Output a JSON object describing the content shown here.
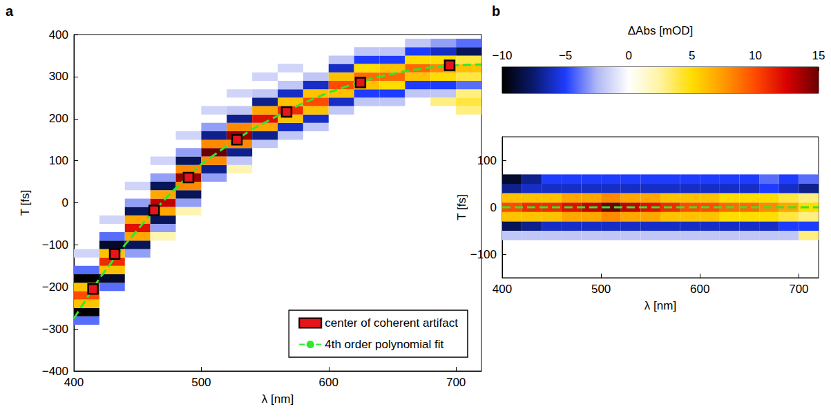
{
  "chart_data": [
    {
      "panel": "a",
      "type": "heatmap",
      "x_label": "λ [nm]",
      "y_label": "T [fs]",
      "xlim": [
        400,
        720
      ],
      "xticks": [
        400,
        500,
        600,
        700
      ],
      "ylim": [
        -400,
        400
      ],
      "yticks": [
        {
          "value": -400,
          "label": "−400"
        },
        {
          "value": -300,
          "label": "−300"
        },
        {
          "value": -200,
          "label": "−200"
        },
        {
          "value": -100,
          "label": "−100"
        },
        0,
        100,
        200,
        300,
        400
      ],
      "legend": "lower right",
      "cells": [
        [
          410,
          -280,
          -4
        ],
        [
          410,
          -260,
          -10
        ],
        [
          410,
          -240,
          6
        ],
        [
          410,
          -220,
          10
        ],
        [
          410,
          -200,
          6
        ],
        [
          410,
          -180,
          -10
        ],
        [
          410,
          -160,
          -4
        ],
        [
          410,
          -120,
          -1.5
        ],
        [
          430,
          -200,
          -4
        ],
        [
          430,
          -180,
          -9
        ],
        [
          430,
          -160,
          6
        ],
        [
          430,
          -140,
          11
        ],
        [
          430,
          -120,
          6
        ],
        [
          430,
          -100,
          -9
        ],
        [
          430,
          -80,
          -4
        ],
        [
          430,
          -40,
          -1.5
        ],
        [
          450,
          -120,
          -3
        ],
        [
          450,
          -100,
          -8
        ],
        [
          450,
          -80,
          7
        ],
        [
          450,
          -60,
          12
        ],
        [
          450,
          -40,
          7
        ],
        [
          450,
          -20,
          -8
        ],
        [
          450,
          0,
          -3
        ],
        [
          450,
          40,
          -1.5
        ],
        [
          470,
          -80,
          2
        ],
        [
          470,
          -60,
          -3
        ],
        [
          470,
          -40,
          -8
        ],
        [
          470,
          -20,
          7
        ],
        [
          470,
          0,
          13
        ],
        [
          470,
          20,
          7
        ],
        [
          470,
          40,
          -8
        ],
        [
          470,
          60,
          -3
        ],
        [
          470,
          100,
          -1.5
        ],
        [
          490,
          -20,
          2
        ],
        [
          490,
          0,
          -3
        ],
        [
          490,
          20,
          -8
        ],
        [
          490,
          40,
          8
        ],
        [
          490,
          60,
          14
        ],
        [
          490,
          80,
          8
        ],
        [
          490,
          100,
          -8
        ],
        [
          490,
          120,
          -3
        ],
        [
          490,
          160,
          -1.5
        ],
        [
          510,
          60,
          -3
        ],
        [
          510,
          80,
          -7
        ],
        [
          510,
          100,
          8
        ],
        [
          510,
          120,
          15
        ],
        [
          510,
          140,
          8
        ],
        [
          510,
          160,
          -7
        ],
        [
          510,
          180,
          -3
        ],
        [
          510,
          220,
          -1.5
        ],
        [
          530,
          80,
          2
        ],
        [
          530,
          100,
          -2
        ],
        [
          530,
          120,
          -7
        ],
        [
          530,
          140,
          8
        ],
        [
          530,
          160,
          14
        ],
        [
          530,
          180,
          8
        ],
        [
          530,
          200,
          -7
        ],
        [
          530,
          220,
          -2
        ],
        [
          530,
          260,
          -1.5
        ],
        [
          550,
          140,
          -2
        ],
        [
          550,
          160,
          -7
        ],
        [
          550,
          180,
          7
        ],
        [
          550,
          200,
          12
        ],
        [
          550,
          220,
          7
        ],
        [
          550,
          240,
          -7
        ],
        [
          550,
          260,
          -2
        ],
        [
          550,
          300,
          -1.5
        ],
        [
          570,
          160,
          -2
        ],
        [
          570,
          180,
          -6
        ],
        [
          570,
          200,
          6
        ],
        [
          570,
          220,
          11
        ],
        [
          570,
          240,
          6
        ],
        [
          570,
          260,
          -6
        ],
        [
          570,
          280,
          -2
        ],
        [
          570,
          320,
          -1.5
        ],
        [
          590,
          180,
          -2
        ],
        [
          590,
          200,
          -6
        ],
        [
          590,
          220,
          6
        ],
        [
          590,
          240,
          10
        ],
        [
          590,
          260,
          6
        ],
        [
          590,
          280,
          -6
        ],
        [
          590,
          300,
          -2
        ],
        [
          610,
          220,
          -2
        ],
        [
          610,
          240,
          -6
        ],
        [
          610,
          260,
          6
        ],
        [
          610,
          280,
          10
        ],
        [
          610,
          300,
          6
        ],
        [
          610,
          320,
          -6
        ],
        [
          610,
          340,
          -2
        ],
        [
          630,
          240,
          -2
        ],
        [
          630,
          260,
          -5
        ],
        [
          630,
          280,
          6
        ],
        [
          630,
          300,
          9
        ],
        [
          630,
          320,
          5
        ],
        [
          630,
          340,
          -5
        ],
        [
          630,
          360,
          -2
        ],
        [
          650,
          240,
          -2
        ],
        [
          650,
          260,
          -5
        ],
        [
          650,
          280,
          5
        ],
        [
          650,
          300,
          9
        ],
        [
          650,
          320,
          6
        ],
        [
          650,
          340,
          -5
        ],
        [
          650,
          360,
          -2
        ],
        [
          670,
          260,
          -2
        ],
        [
          670,
          280,
          -5
        ],
        [
          670,
          300,
          6
        ],
        [
          670,
          320,
          9
        ],
        [
          670,
          340,
          5
        ],
        [
          670,
          360,
          -5
        ],
        [
          670,
          380,
          -2
        ],
        [
          690,
          240,
          3
        ],
        [
          690,
          260,
          -2
        ],
        [
          690,
          280,
          -5
        ],
        [
          690,
          300,
          5
        ],
        [
          690,
          320,
          8
        ],
        [
          690,
          340,
          5
        ],
        [
          690,
          360,
          -6
        ],
        [
          690,
          380,
          -3
        ],
        [
          710,
          220,
          3
        ],
        [
          710,
          240,
          4
        ],
        [
          710,
          260,
          3
        ],
        [
          710,
          280,
          -4
        ],
        [
          710,
          300,
          4
        ],
        [
          710,
          320,
          6
        ],
        [
          710,
          340,
          4
        ],
        [
          710,
          360,
          -8
        ],
        [
          710,
          380,
          -4
        ]
      ],
      "series": [
        {
          "name": "center of coherent artifact",
          "type": "scatter",
          "marker": "square",
          "color": "#e8141c",
          "x": [
            415,
            432,
            463,
            490,
            528,
            567,
            625,
            695
          ],
          "values": [
            -205,
            -122,
            -18,
            60,
            150,
            216,
            286,
            327
          ]
        },
        {
          "name": "4th order polynomial fit",
          "type": "line",
          "line_style": "dashed",
          "color": "#2ee82e",
          "x": [
            400,
            420,
            440,
            460,
            480,
            500,
            520,
            540,
            560,
            580,
            600,
            620,
            640,
            660,
            680,
            700,
            720
          ],
          "values": [
            -275,
            -180,
            -100,
            -28,
            35,
            92,
            135,
            175,
            207,
            237,
            262,
            283,
            300,
            313,
            322,
            327,
            329
          ]
        }
      ]
    },
    {
      "panel": "b",
      "type": "heatmap",
      "x_label": "λ [nm]",
      "y_label": "T [fs]",
      "xlim": [
        400,
        720
      ],
      "xticks": [
        400,
        500,
        600,
        700
      ],
      "ylim": [
        -150,
        150
      ],
      "yticks": [
        {
          "value": -100,
          "label": "−100"
        },
        0,
        100
      ],
      "color_bar": {
        "label": "ΔAbs [mOD]",
        "range": [
          -10,
          15
        ],
        "ticks": [
          {
            "value": -10,
            "label": "−10"
          },
          {
            "value": -5,
            "label": "−5"
          },
          0,
          5,
          10,
          15
        ]
      },
      "cells": [
        [
          410,
          -60,
          -2
        ],
        [
          410,
          -40,
          -8
        ],
        [
          410,
          -20,
          6
        ],
        [
          410,
          0,
          10
        ],
        [
          410,
          20,
          6
        ],
        [
          410,
          40,
          -7
        ],
        [
          410,
          60,
          -9
        ],
        [
          430,
          -60,
          -2
        ],
        [
          430,
          -40,
          -7
        ],
        [
          430,
          -20,
          6
        ],
        [
          430,
          0,
          11
        ],
        [
          430,
          20,
          6
        ],
        [
          430,
          40,
          -6
        ],
        [
          430,
          60,
          -7
        ],
        [
          450,
          -60,
          -2
        ],
        [
          450,
          -40,
          -6
        ],
        [
          450,
          -20,
          6
        ],
        [
          450,
          0,
          11
        ],
        [
          450,
          20,
          6
        ],
        [
          450,
          40,
          -6
        ],
        [
          450,
          60,
          -5
        ],
        [
          470,
          -60,
          -2
        ],
        [
          470,
          -40,
          -6
        ],
        [
          470,
          -20,
          7
        ],
        [
          470,
          0,
          12
        ],
        [
          470,
          20,
          7
        ],
        [
          470,
          40,
          -6
        ],
        [
          470,
          60,
          -5
        ],
        [
          490,
          -60,
          -2
        ],
        [
          490,
          -40,
          -6
        ],
        [
          490,
          -20,
          7
        ],
        [
          490,
          0,
          13
        ],
        [
          490,
          20,
          7
        ],
        [
          490,
          40,
          -6
        ],
        [
          490,
          60,
          -5
        ],
        [
          510,
          -60,
          -2
        ],
        [
          510,
          -40,
          -6
        ],
        [
          510,
          -20,
          8
        ],
        [
          510,
          0,
          15
        ],
        [
          510,
          20,
          8
        ],
        [
          510,
          40,
          -6
        ],
        [
          510,
          60,
          -5
        ],
        [
          530,
          -60,
          -2
        ],
        [
          530,
          -40,
          -6
        ],
        [
          530,
          -20,
          7
        ],
        [
          530,
          0,
          13
        ],
        [
          530,
          20,
          7
        ],
        [
          530,
          40,
          -6
        ],
        [
          530,
          60,
          -5
        ],
        [
          550,
          -60,
          -2
        ],
        [
          550,
          -40,
          -6
        ],
        [
          550,
          -20,
          7
        ],
        [
          550,
          0,
          12
        ],
        [
          550,
          20,
          7
        ],
        [
          550,
          40,
          -6
        ],
        [
          550,
          60,
          -5
        ],
        [
          570,
          -60,
          -2
        ],
        [
          570,
          -40,
          -6
        ],
        [
          570,
          -20,
          6
        ],
        [
          570,
          0,
          11
        ],
        [
          570,
          20,
          6
        ],
        [
          570,
          40,
          -6
        ],
        [
          570,
          60,
          -5
        ],
        [
          590,
          -60,
          -2
        ],
        [
          590,
          -40,
          -6
        ],
        [
          590,
          -20,
          6
        ],
        [
          590,
          0,
          10
        ],
        [
          590,
          20,
          6
        ],
        [
          590,
          40,
          -6
        ],
        [
          590,
          60,
          -5
        ],
        [
          610,
          -60,
          -2
        ],
        [
          610,
          -40,
          -6
        ],
        [
          610,
          -20,
          6
        ],
        [
          610,
          0,
          10
        ],
        [
          610,
          20,
          6
        ],
        [
          610,
          40,
          -6
        ],
        [
          610,
          60,
          -5
        ],
        [
          630,
          -60,
          -2
        ],
        [
          630,
          -40,
          -6
        ],
        [
          630,
          -20,
          5
        ],
        [
          630,
          0,
          9
        ],
        [
          630,
          20,
          5
        ],
        [
          630,
          40,
          -6
        ],
        [
          630,
          60,
          -5
        ],
        [
          650,
          -60,
          -2
        ],
        [
          650,
          -40,
          -6
        ],
        [
          650,
          -20,
          5
        ],
        [
          650,
          0,
          9
        ],
        [
          650,
          20,
          5
        ],
        [
          650,
          40,
          -6
        ],
        [
          650,
          60,
          -5
        ],
        [
          670,
          -60,
          -2
        ],
        [
          670,
          -40,
          -6
        ],
        [
          670,
          -20,
          5
        ],
        [
          670,
          0,
          8
        ],
        [
          670,
          20,
          5
        ],
        [
          670,
          40,
          -5
        ],
        [
          670,
          60,
          -4
        ],
        [
          690,
          -60,
          -2
        ],
        [
          690,
          -40,
          -5
        ],
        [
          690,
          -20,
          4
        ],
        [
          690,
          0,
          7
        ],
        [
          690,
          20,
          4
        ],
        [
          690,
          40,
          -6
        ],
        [
          690,
          60,
          -5
        ],
        [
          710,
          -60,
          3
        ],
        [
          710,
          -40,
          -5
        ],
        [
          710,
          -20,
          3
        ],
        [
          710,
          0,
          5
        ],
        [
          710,
          20,
          3
        ],
        [
          710,
          40,
          -7
        ],
        [
          710,
          60,
          -4
        ]
      ],
      "series": [
        {
          "type": "line",
          "line_style": "dashed",
          "color": "#2ee82e",
          "x": [
            400,
            720
          ],
          "values": [
            0,
            0
          ]
        }
      ]
    }
  ]
}
